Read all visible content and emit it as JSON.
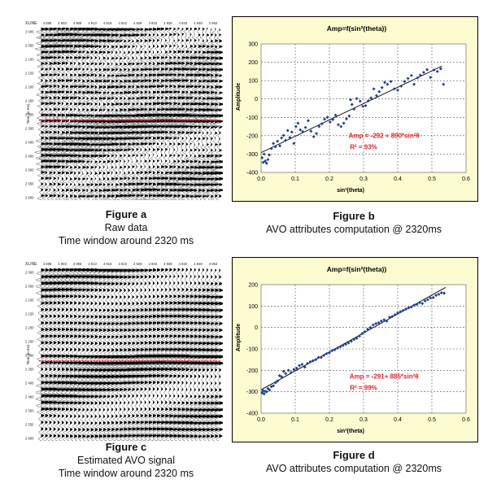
{
  "seismic": [
    {
      "xline_label": "XLINE",
      "trace_labels": [
        "4 898",
        "4 903",
        "4 908",
        "4 913",
        "4 918",
        "4 923",
        "4 928",
        "4 933",
        "4 938",
        "4 943",
        "4 948",
        "4 953"
      ],
      "time_labels": [
        "2 000",
        "2 050",
        "2 100",
        "2 150",
        "2 200",
        "2 250",
        "2 300",
        "2 350",
        "2 400",
        "2 450",
        "2 500",
        "2 550",
        "2 600"
      ],
      "time_axis_label": "Time (in ms)",
      "marker_color": "#e8202a",
      "variant": "raw",
      "figure_label": "Figure a",
      "caption_lines": [
        "Raw data",
        "Time window around  2320 ms"
      ]
    },
    {
      "xline_label": "XLINE",
      "trace_labels": [
        "4 898",
        "4 903",
        "4 908",
        "4 913",
        "4 918",
        "4 923",
        "4 928",
        "4 933",
        "4 938",
        "4 943",
        "4 948",
        "4 953"
      ],
      "time_labels": [
        "2 000",
        "2 050",
        "2 100",
        "2 150",
        "2 200",
        "2 250",
        "2 300",
        "2 350",
        "2 400",
        "2 450",
        "2 500",
        "2 550",
        "2 600"
      ],
      "time_axis_label": "Time (in ms)",
      "marker_color": "#e8202a",
      "variant": "estimated",
      "figure_label": "Figure c",
      "caption_lines": [
        "Estimated AVO signal",
        "Time window around  2320 ms"
      ]
    }
  ],
  "plot_captions": [
    {
      "figure_label": "Figure b",
      "caption": "AVO attributes computation  @ 2320ms"
    },
    {
      "figure_label": "Figure d",
      "caption": "AVO attributes computation  @ 2320ms"
    }
  ],
  "colors": {
    "panel_bg": "#fdfbd0",
    "plot_bg": "#ffffff",
    "point": "#1f3f9a",
    "fit_line": "#000000",
    "annotation": "#e8202a"
  },
  "chart_data": [
    {
      "type": "scatter",
      "title": "Amp=f(sin²(theta))",
      "xlabel": "sin²(theta)",
      "ylabel": "Amplitude",
      "xlim": [
        0,
        0.6
      ],
      "ylim": [
        -400,
        300
      ],
      "xticks": [
        "0.0",
        "0.1",
        "0.2",
        "0.3",
        "0.4",
        "0.5",
        "0.6"
      ],
      "yticks": [
        "300",
        "200",
        "100",
        "0",
        "-100",
        "-200",
        "-300",
        "-400"
      ],
      "grid": true,
      "equation": "Amp = -292 + 890*sin²θ",
      "r2": "R² = 93%",
      "fit": {
        "intercept": -292,
        "slope": 890,
        "x_range": [
          0.0,
          0.53
        ]
      },
      "points": [
        [
          0.003,
          -320
        ],
        [
          0.006,
          -345
        ],
        [
          0.009,
          -300
        ],
        [
          0.012,
          -338
        ],
        [
          0.016,
          -350
        ],
        [
          0.02,
          -330
        ],
        [
          0.024,
          -305
        ],
        [
          0.03,
          -270
        ],
        [
          0.036,
          -242
        ],
        [
          0.042,
          -260
        ],
        [
          0.048,
          -230
        ],
        [
          0.055,
          -255
        ],
        [
          0.06,
          -212
        ],
        [
          0.066,
          -198
        ],
        [
          0.072,
          -225
        ],
        [
          0.078,
          -172
        ],
        [
          0.084,
          -210
        ],
        [
          0.09,
          -180
        ],
        [
          0.096,
          -242
        ],
        [
          0.102,
          -150
        ],
        [
          0.108,
          -132
        ],
        [
          0.115,
          -168
        ],
        [
          0.122,
          -178
        ],
        [
          0.13,
          -155
        ],
        [
          0.138,
          -118
        ],
        [
          0.146,
          -175
        ],
        [
          0.154,
          -205
        ],
        [
          0.162,
          -188
        ],
        [
          0.17,
          -150
        ],
        [
          0.178,
          -135
        ],
        [
          0.186,
          -110
        ],
        [
          0.194,
          -100
        ],
        [
          0.202,
          -125
        ],
        [
          0.21,
          -112
        ],
        [
          0.218,
          -88
        ],
        [
          0.226,
          -140
        ],
        [
          0.234,
          -150
        ],
        [
          0.242,
          -132
        ],
        [
          0.25,
          -108
        ],
        [
          0.258,
          -92
        ],
        [
          0.262,
          -4
        ],
        [
          0.266,
          -30
        ],
        [
          0.272,
          -55
        ],
        [
          0.28,
          2
        ],
        [
          0.29,
          -12
        ],
        [
          0.298,
          -40
        ],
        [
          0.306,
          -36
        ],
        [
          0.314,
          -10
        ],
        [
          0.322,
          6
        ],
        [
          0.33,
          55
        ],
        [
          0.338,
          18
        ],
        [
          0.346,
          40
        ],
        [
          0.354,
          62
        ],
        [
          0.362,
          90
        ],
        [
          0.37,
          80
        ],
        [
          0.38,
          95
        ],
        [
          0.39,
          55
        ],
        [
          0.4,
          48
        ],
        [
          0.41,
          70
        ],
        [
          0.42,
          95
        ],
        [
          0.43,
          112
        ],
        [
          0.44,
          128
        ],
        [
          0.448,
          80
        ],
        [
          0.458,
          115
        ],
        [
          0.466,
          130
        ],
        [
          0.476,
          145
        ],
        [
          0.486,
          160
        ],
        [
          0.496,
          118
        ],
        [
          0.506,
          158
        ],
        [
          0.516,
          150
        ],
        [
          0.526,
          165
        ],
        [
          0.534,
          80
        ]
      ]
    },
    {
      "type": "scatter",
      "title": "Amp=f(sin²(theta))",
      "xlabel": "sin²(theta)",
      "ylabel": "Amplitude",
      "xlim": [
        0,
        0.6
      ],
      "ylim": [
        -400,
        200
      ],
      "xticks": [
        "0.0",
        "0.1",
        "0.2",
        "0.3",
        "0.4",
        "0.5",
        "0.6"
      ],
      "yticks": [
        "200",
        "100",
        "0",
        "-100",
        "-200",
        "-300",
        "-400"
      ],
      "grid": true,
      "equation": "Amp = -291+ 885*sin²θ",
      "r2": "R² = 99%",
      "fit": {
        "intercept": -291,
        "slope": 885,
        "x_range": [
          0.0,
          0.54
        ]
      },
      "points": [
        [
          0.003,
          -305
        ],
        [
          0.006,
          -295
        ],
        [
          0.009,
          -310
        ],
        [
          0.012,
          -298
        ],
        [
          0.016,
          -300
        ],
        [
          0.02,
          -285
        ],
        [
          0.025,
          -292
        ],
        [
          0.03,
          -276
        ],
        [
          0.036,
          -272
        ],
        [
          0.042,
          -258
        ],
        [
          0.048,
          -250
        ],
        [
          0.054,
          -225
        ],
        [
          0.06,
          -230
        ],
        [
          0.066,
          -205
        ],
        [
          0.072,
          -215
        ],
        [
          0.08,
          -200
        ],
        [
          0.088,
          -210
        ],
        [
          0.096,
          -196
        ],
        [
          0.104,
          -190
        ],
        [
          0.112,
          -178
        ],
        [
          0.12,
          -172
        ],
        [
          0.128,
          -185
        ],
        [
          0.136,
          -168
        ],
        [
          0.144,
          -160
        ],
        [
          0.152,
          -155
        ],
        [
          0.16,
          -150
        ],
        [
          0.168,
          -140
        ],
        [
          0.176,
          -140
        ],
        [
          0.184,
          -130
        ],
        [
          0.192,
          -122
        ],
        [
          0.2,
          -118
        ],
        [
          0.208,
          -108
        ],
        [
          0.216,
          -104
        ],
        [
          0.224,
          -96
        ],
        [
          0.232,
          -90
        ],
        [
          0.24,
          -84
        ],
        [
          0.248,
          -78
        ],
        [
          0.256,
          -72
        ],
        [
          0.264,
          -64
        ],
        [
          0.272,
          -56
        ],
        [
          0.28,
          -50
        ],
        [
          0.288,
          -40
        ],
        [
          0.296,
          -28
        ],
        [
          0.304,
          -20
        ],
        [
          0.312,
          -8
        ],
        [
          0.32,
          0
        ],
        [
          0.328,
          12
        ],
        [
          0.336,
          18
        ],
        [
          0.344,
          22
        ],
        [
          0.352,
          30
        ],
        [
          0.36,
          36
        ],
        [
          0.368,
          30
        ],
        [
          0.376,
          48
        ],
        [
          0.384,
          52
        ],
        [
          0.392,
          60
        ],
        [
          0.4,
          68
        ],
        [
          0.408,
          74
        ],
        [
          0.416,
          80
        ],
        [
          0.424,
          86
        ],
        [
          0.432,
          92
        ],
        [
          0.44,
          96
        ],
        [
          0.448,
          104
        ],
        [
          0.456,
          108
        ],
        [
          0.464,
          116
        ],
        [
          0.472,
          112
        ],
        [
          0.48,
          124
        ],
        [
          0.488,
          130
        ],
        [
          0.496,
          138
        ],
        [
          0.504,
          140
        ],
        [
          0.512,
          150
        ],
        [
          0.52,
          155
        ],
        [
          0.528,
          162
        ],
        [
          0.536,
          160
        ]
      ]
    }
  ]
}
